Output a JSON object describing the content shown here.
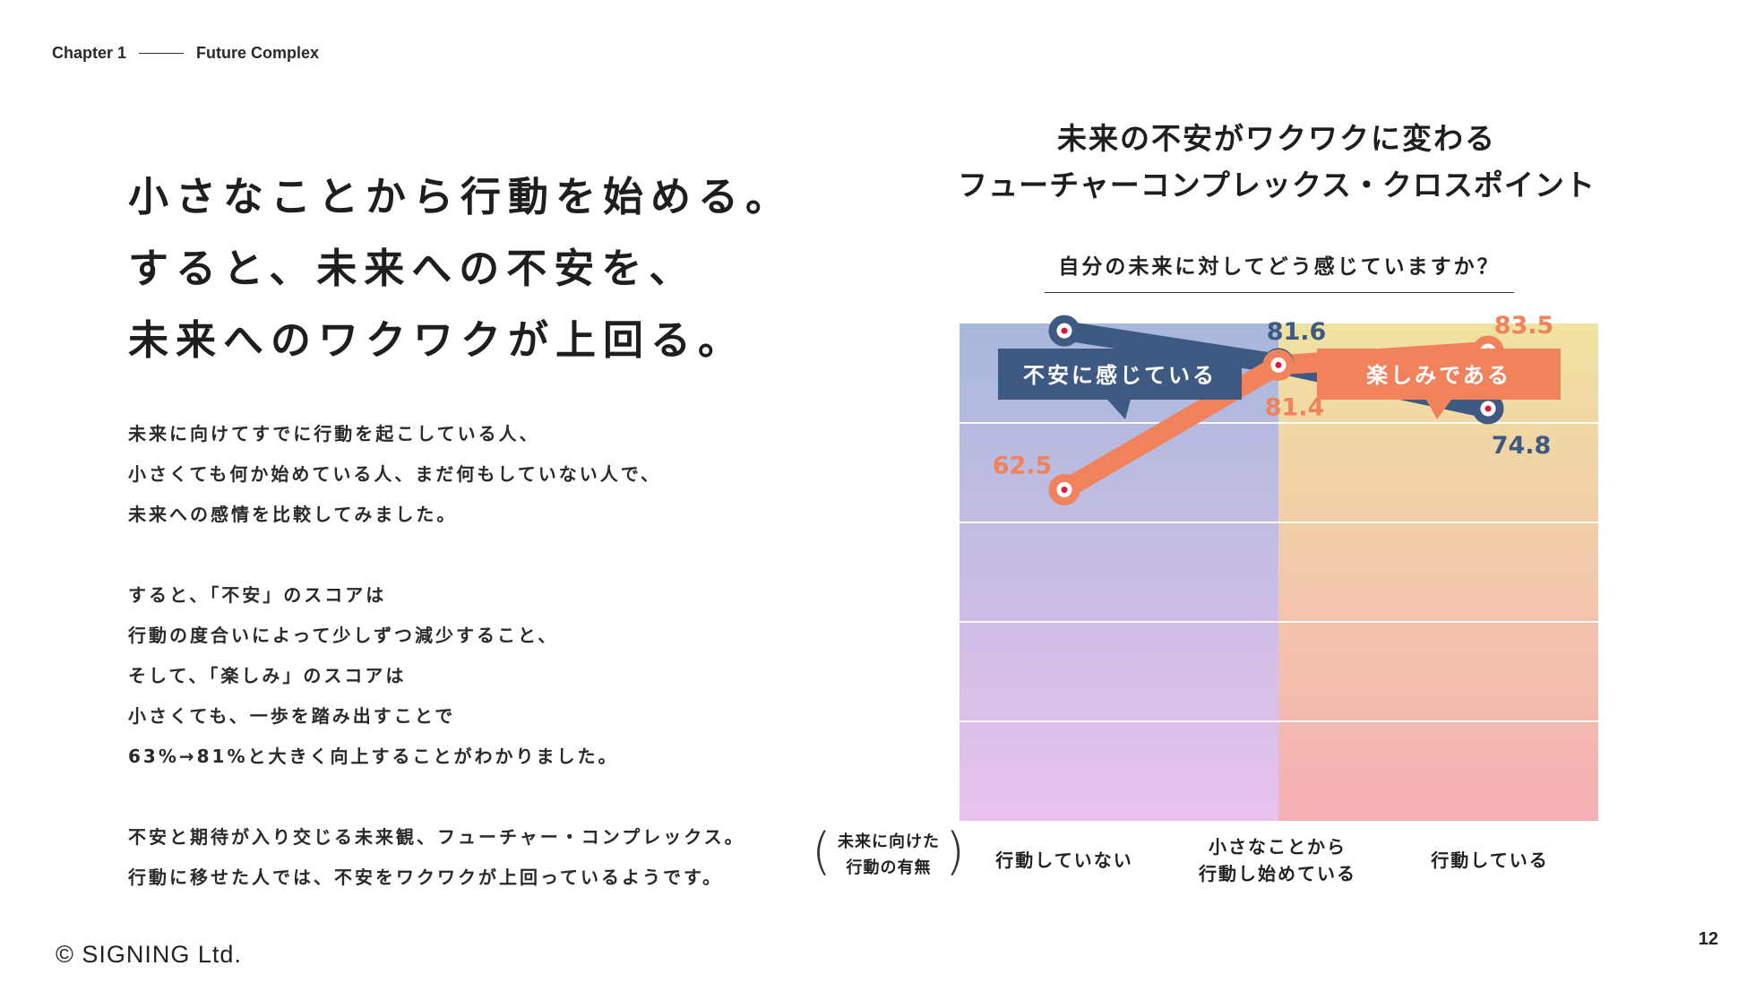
{
  "header": {
    "chapter": "Chapter 1",
    "section": "Future Complex"
  },
  "headline": [
    "小さなことから行動を始める。",
    "すると、未来への不安を、",
    "未来へのワクワクが上回る。"
  ],
  "body": {
    "paragraph1": [
      "未来に向けてすでに行動を起こしている人、",
      "小さくても何か始めている人、まだ何もしていない人で、",
      "未来への感情を比較してみました。"
    ],
    "paragraph2": [
      "すると、「不安」のスコアは",
      "行動の度合いによって少しずつ減少すること、",
      "そして、「楽しみ」のスコアは",
      "小さくても、一歩を踏み出すことで",
      "63%→81%と大きく向上することがわかりました。"
    ],
    "paragraph3": [
      "不安と期待が入り交じる未来観、フューチャー・コンプレックス。",
      "行動に移せた人では、不安をワクワクが上回っているようです。"
    ]
  },
  "footer": {
    "copyright": "© SIGNING Ltd.",
    "page_number": "12"
  },
  "colors": {
    "anxiety": "#3e5a82",
    "enjoyment": "#f0825c",
    "left_bg_top": "#a8b8dc",
    "left_bg_bottom": "#e8c2ec",
    "right_bg_top": "#f0e2a0",
    "right_bg_bottom": "#f5b0b4"
  },
  "chart_data": {
    "type": "line",
    "title": "未来の不安がワクワクに変わる",
    "subtitle": "フューチャーコンプレックス・クロスポイント",
    "question": "自分の未来に対してどう感じていますか？",
    "xlabel_lines": [
      "未来に向けた",
      "行動の有無"
    ],
    "categories": [
      [
        "行動していない"
      ],
      [
        "小さなことから",
        "行動し始めている"
      ],
      [
        "行動している"
      ]
    ],
    "series": [
      {
        "name": "不安に感じている",
        "values": [
          86.6,
          81.6,
          74.8
        ]
      },
      {
        "name": "楽しみである",
        "values": [
          62.5,
          81.4,
          83.5
        ]
      }
    ],
    "grid": true,
    "legend": "callout labels at top-left and top-right of plot"
  }
}
